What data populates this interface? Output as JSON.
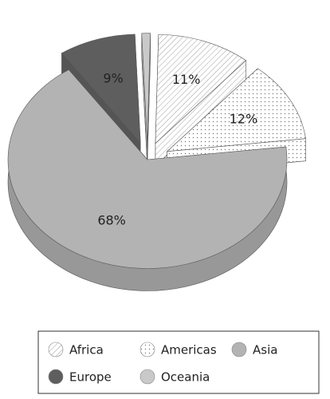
{
  "chart_data": {
    "type": "pie",
    "categories": [
      "Africa",
      "Americas",
      "Asia",
      "Europe",
      "Oceania"
    ],
    "values": [
      11,
      12,
      68,
      9,
      1
    ],
    "value_labels": [
      "11%",
      "12%",
      "68%",
      "9%",
      null
    ],
    "colors": [
      "#ffffff",
      "#ffffff",
      "#b3b3b3",
      "#5e5e5e",
      "#c9c9c9"
    ],
    "patterns": [
      "hatch",
      "dots",
      null,
      null,
      null
    ],
    "exploded": [
      true,
      true,
      false,
      true,
      true
    ]
  }
}
